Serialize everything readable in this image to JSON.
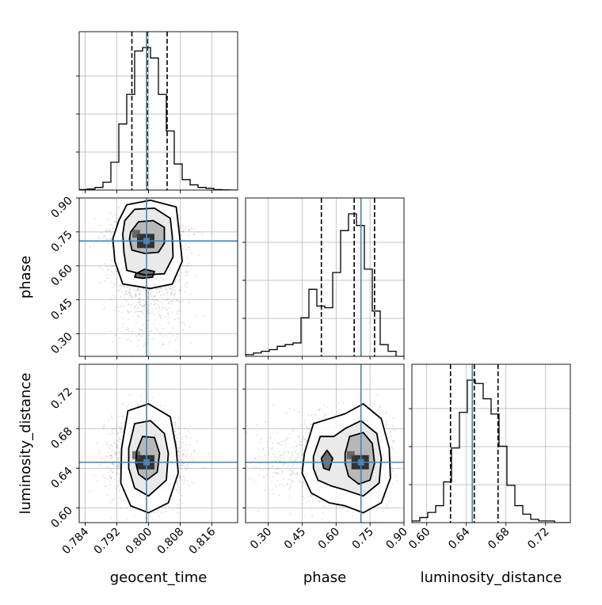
{
  "chart_data": {
    "type": "corner",
    "parameters": [
      {
        "name": "geocent_time",
        "label": "geocent_time",
        "range": [
          0.7825,
          0.8225
        ],
        "ticks": [
          0.784,
          0.792,
          0.8,
          0.808,
          0.816
        ],
        "tick_labels": [
          "0.784",
          "0.792",
          "0.800",
          "0.808",
          "0.816"
        ],
        "truth": 0.7995,
        "quantiles": [
          0.7958,
          0.7997,
          0.8047
        ]
      },
      {
        "name": "phase",
        "label": "phase",
        "range": [
          0.2,
          0.9
        ],
        "ticks": [
          0.3,
          0.45,
          0.6,
          0.75,
          0.9
        ],
        "tick_labels": [
          "0.30",
          "0.45",
          "0.60",
          "0.75",
          "0.90"
        ],
        "truth": 0.71,
        "quantiles": [
          0.535,
          0.68,
          0.77
        ]
      },
      {
        "name": "luminosity_distance",
        "label": "luminosity_distance",
        "range": [
          0.585,
          0.745
        ],
        "ticks": [
          0.6,
          0.64,
          0.68,
          0.72
        ],
        "tick_labels": [
          "0.60",
          "0.64",
          "0.68",
          "0.72"
        ],
        "truth": 0.646,
        "quantiles": [
          0.624,
          0.648,
          0.672
        ]
      }
    ],
    "histograms": [
      {
        "param": "geocent_time",
        "x0": 0.7825,
        "bin_width": 0.002,
        "counts": [
          0.3,
          0.6,
          1.5,
          4.5,
          16,
          38,
          55,
          80,
          82,
          76,
          55,
          34,
          15,
          6,
          3,
          1.5,
          1,
          0.3,
          0.1,
          0
        ]
      },
      {
        "param": "phase",
        "x0": 0.2,
        "bin_width": 0.035,
        "counts": [
          1,
          2,
          3,
          4,
          6,
          7,
          8,
          23,
          40,
          30,
          29,
          50,
          75,
          85,
          78,
          52,
          27,
          7,
          3,
          0
        ]
      },
      {
        "param": "luminosity_distance",
        "x0": 0.585,
        "bin_width": 0.008,
        "counts": [
          1,
          3,
          6,
          10,
          24,
          44,
          65,
          84,
          82,
          73,
          64,
          45,
          22,
          10,
          5,
          2,
          1,
          1,
          0,
          0
        ]
      }
    ],
    "density_pairs": [
      {
        "x": "geocent_time",
        "y": "phase",
        "contours": [
          [
            [
              0.7925,
              0.8
            ],
            [
              0.7945,
              0.87
            ],
            [
              0.8005,
              0.89
            ],
            [
              0.807,
              0.86
            ],
            [
              0.8078,
              0.74
            ],
            [
              0.8085,
              0.62
            ],
            [
              0.806,
              0.52
            ],
            [
              0.8005,
              0.5
            ],
            [
              0.7935,
              0.52
            ],
            [
              0.7915,
              0.62
            ],
            [
              0.791,
              0.72
            ]
          ],
          [
            [
              0.794,
              0.8
            ],
            [
              0.7965,
              0.85
            ],
            [
              0.8015,
              0.855
            ],
            [
              0.8055,
              0.81
            ],
            [
              0.806,
              0.73
            ],
            [
              0.8062,
              0.64
            ],
            [
              0.804,
              0.565
            ],
            [
              0.799,
              0.56
            ],
            [
              0.7945,
              0.58
            ],
            [
              0.7938,
              0.66
            ],
            [
              0.7935,
              0.74
            ]
          ],
          [
            [
              0.7955,
              0.75
            ],
            [
              0.7975,
              0.795
            ],
            [
              0.8012,
              0.8
            ],
            [
              0.804,
              0.77
            ],
            [
              0.804,
              0.7
            ],
            [
              0.8025,
              0.66
            ],
            [
              0.799,
              0.655
            ],
            [
              0.7958,
              0.67
            ],
            [
              0.7952,
              0.72
            ]
          ],
          [
            [
              0.7968,
              0.565
            ],
            [
              0.799,
              0.585
            ],
            [
              0.8015,
              0.575
            ],
            [
              0.801,
              0.55
            ],
            [
              0.7985,
              0.545
            ],
            [
              0.7965,
              0.55
            ]
          ]
        ]
      },
      {
        "x": "geocent_time",
        "y": "luminosity_distance",
        "contours": [
          [
            [
              0.7932,
              0.66
            ],
            [
              0.7948,
              0.698
            ],
            [
              0.8,
              0.705
            ],
            [
              0.8055,
              0.692
            ],
            [
              0.807,
              0.66
            ],
            [
              0.8075,
              0.635
            ],
            [
              0.805,
              0.605
            ],
            [
              0.8,
              0.595
            ],
            [
              0.7955,
              0.602
            ],
            [
              0.793,
              0.625
            ]
          ],
          [
            [
              0.795,
              0.66
            ],
            [
              0.7965,
              0.685
            ],
            [
              0.8005,
              0.688
            ],
            [
              0.804,
              0.675
            ],
            [
              0.805,
              0.655
            ],
            [
              0.8045,
              0.628
            ],
            [
              0.8,
              0.612
            ],
            [
              0.7965,
              0.62
            ],
            [
              0.795,
              0.64
            ]
          ],
          [
            [
              0.797,
              0.657
            ],
            [
              0.7985,
              0.672
            ],
            [
              0.8015,
              0.671
            ],
            [
              0.8028,
              0.655
            ],
            [
              0.8022,
              0.636
            ],
            [
              0.7995,
              0.628
            ],
            [
              0.7975,
              0.634
            ],
            [
              0.7968,
              0.645
            ]
          ]
        ]
      },
      {
        "x": "phase",
        "y": "luminosity_distance",
        "contours": [
          [
            [
              0.46,
              0.655
            ],
            [
              0.5,
              0.685
            ],
            [
              0.57,
              0.69
            ],
            [
              0.64,
              0.695
            ],
            [
              0.72,
              0.705
            ],
            [
              0.8,
              0.69
            ],
            [
              0.835,
              0.66
            ],
            [
              0.84,
              0.63
            ],
            [
              0.8,
              0.605
            ],
            [
              0.72,
              0.595
            ],
            [
              0.64,
              0.602
            ],
            [
              0.57,
              0.605
            ],
            [
              0.49,
              0.615
            ],
            [
              0.45,
              0.635
            ]
          ],
          [
            [
              0.5,
              0.652
            ],
            [
              0.53,
              0.672
            ],
            [
              0.59,
              0.672
            ],
            [
              0.64,
              0.68
            ],
            [
              0.71,
              0.688
            ],
            [
              0.78,
              0.675
            ],
            [
              0.8,
              0.65
            ],
            [
              0.79,
              0.625
            ],
            [
              0.72,
              0.612
            ],
            [
              0.64,
              0.618
            ],
            [
              0.58,
              0.622
            ],
            [
              0.52,
              0.628
            ],
            [
              0.5,
              0.64
            ]
          ],
          [
            [
              0.64,
              0.655
            ],
            [
              0.66,
              0.672
            ],
            [
              0.72,
              0.676
            ],
            [
              0.76,
              0.665
            ],
            [
              0.77,
              0.645
            ],
            [
              0.75,
              0.628
            ],
            [
              0.7,
              0.624
            ],
            [
              0.655,
              0.632
            ],
            [
              0.64,
              0.645
            ]
          ],
          [
            [
              0.535,
              0.65
            ],
            [
              0.56,
              0.658
            ],
            [
              0.585,
              0.65
            ],
            [
              0.57,
              0.638
            ],
            [
              0.545,
              0.64
            ]
          ]
        ]
      }
    ],
    "colors": {
      "truth": "#4682b4",
      "hist": "#000000",
      "quantile": "#000000",
      "grid": "#b0b0b0",
      "samples": "#000000"
    }
  }
}
